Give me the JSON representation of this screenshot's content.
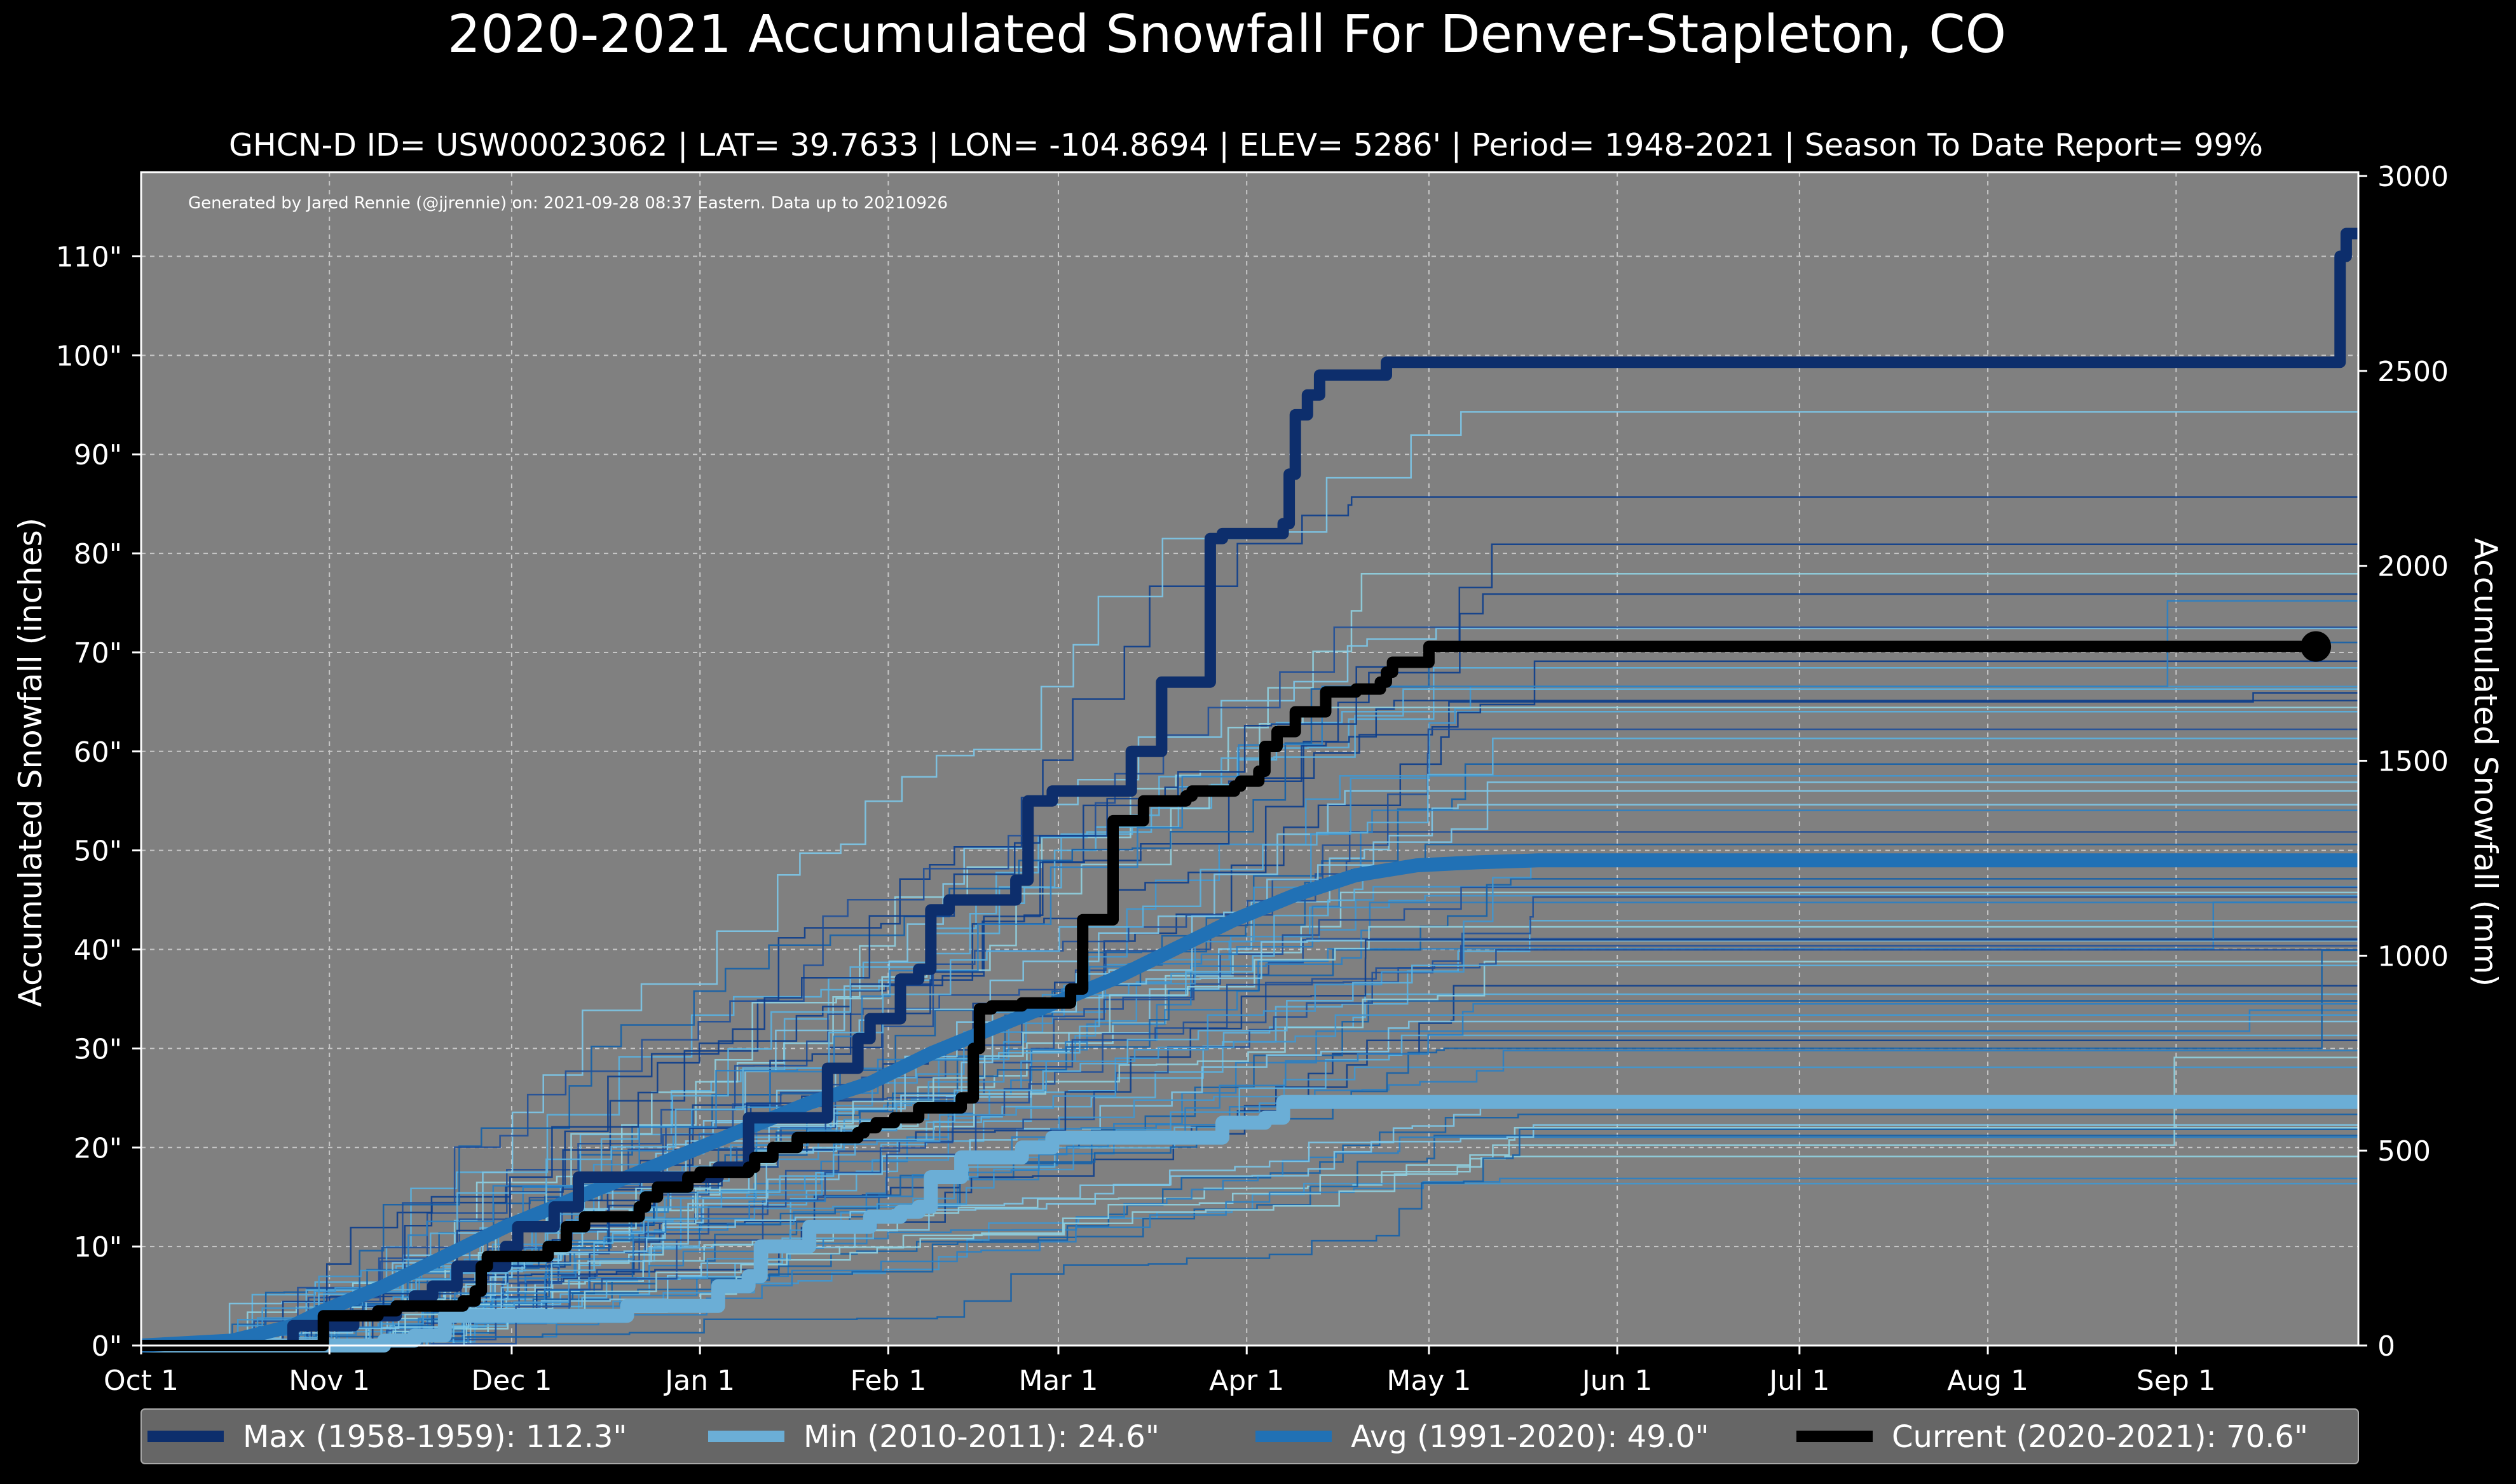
{
  "chart_data": {
    "type": "line",
    "title": "2020-2021 Accumulated Snowfall For Denver-Stapleton, CO",
    "subtitle": "GHCN-D ID= USW00023062 | LAT= 39.7633 | LON= -104.8694 | ELEV= 5286' | Period= 1948-2021 | Season To Date Report= 99%",
    "credit": "Generated by Jared Rennie (@jjrennie) on: 2021-09-28 08:37 Eastern. Data up to 20210926",
    "ylabel_left": "Accumulated Snowfall (inches)",
    "ylabel_right": "Accumulated Snowfall (mm)",
    "xlim": [
      0,
      365
    ],
    "ylim": [
      0,
      118.5
    ],
    "x_ticks": [
      {
        "day": 0,
        "label": "Oct 1"
      },
      {
        "day": 31,
        "label": "Nov 1"
      },
      {
        "day": 61,
        "label": "Dec 1"
      },
      {
        "day": 92,
        "label": "Jan 1"
      },
      {
        "day": 123,
        "label": "Feb 1"
      },
      {
        "day": 151,
        "label": "Mar 1"
      },
      {
        "day": 182,
        "label": "Apr 1"
      },
      {
        "day": 212,
        "label": "May 1"
      },
      {
        "day": 243,
        "label": "Jun 1"
      },
      {
        "day": 273,
        "label": "Jul 1"
      },
      {
        "day": 304,
        "label": "Aug 1"
      },
      {
        "day": 335,
        "label": "Sep 1"
      }
    ],
    "y_ticks_left": [
      {
        "value": 0,
        "label": "0\""
      },
      {
        "value": 10,
        "label": "10\""
      },
      {
        "value": 20,
        "label": "20\""
      },
      {
        "value": 30,
        "label": "30\""
      },
      {
        "value": 40,
        "label": "40\""
      },
      {
        "value": 50,
        "label": "50\""
      },
      {
        "value": 60,
        "label": "60\""
      },
      {
        "value": 70,
        "label": "70\""
      },
      {
        "value": 80,
        "label": "80\""
      },
      {
        "value": 90,
        "label": "90\""
      },
      {
        "value": 100,
        "label": "100\""
      },
      {
        "value": 110,
        "label": "110\""
      }
    ],
    "y_ticks_right": [
      {
        "mm": 0,
        "label": "0"
      },
      {
        "mm": 500,
        "label": "500"
      },
      {
        "mm": 1000,
        "label": "1000"
      },
      {
        "mm": 1500,
        "label": "1500"
      },
      {
        "mm": 2000,
        "label": "2000"
      },
      {
        "mm": 2500,
        "label": "2500"
      },
      {
        "mm": 3000,
        "label": "3000"
      }
    ],
    "series": [
      {
        "name": "Max (1958-1959)",
        "label": "Max (1958-1959):  112.3\"",
        "color": "#0d2e6c",
        "days": [
          0,
          20,
          25,
          35,
          42,
          45,
          48,
          52,
          60,
          62,
          68,
          72,
          75,
          82,
          90,
          95,
          100,
          110,
          113,
          118,
          120,
          125,
          128,
          130,
          133,
          140,
          144,
          146,
          148,
          150,
          152,
          160,
          163,
          165,
          168,
          172,
          176,
          178,
          182,
          186,
          188,
          189,
          190,
          192,
          194,
          198,
          200,
          202,
          205,
          210,
          220,
          300,
          361,
          362,
          363,
          365
        ],
        "values": [
          0,
          0,
          2,
          3,
          4,
          5,
          6,
          8,
          10,
          12,
          14,
          17,
          17,
          17,
          17,
          18,
          23,
          23,
          28,
          31,
          33,
          37,
          38,
          44,
          45,
          45,
          47,
          55,
          55,
          56,
          56,
          56,
          60,
          60,
          67,
          67,
          81.5,
          82,
          82,
          82,
          83,
          88,
          94,
          96,
          98,
          98,
          98,
          98,
          99.3,
          99.3,
          99.3,
          99.3,
          99.3,
          110,
          112.3,
          112.3
        ]
      },
      {
        "name": "Min (2010-2011)",
        "label": "Min (2010-2011):   24.6\"",
        "color": "#6baed6",
        "days": [
          0,
          25,
          35,
          40,
          45,
          50,
          60,
          70,
          80,
          90,
          95,
          100,
          102,
          110,
          115,
          120,
          125,
          128,
          130,
          132,
          135,
          140,
          145,
          148,
          150,
          155,
          170,
          178,
          185,
          188,
          200,
          365
        ],
        "values": [
          0,
          0,
          0,
          0.5,
          1,
          3,
          3,
          3,
          4,
          4,
          6,
          7,
          10,
          12,
          12,
          13,
          13.5,
          14,
          17,
          17,
          19,
          19,
          20,
          20,
          21,
          21,
          21,
          22.5,
          23,
          24.6,
          24.6,
          24.6
        ]
      },
      {
        "name": "Avg (1991-2020)",
        "label": "Avg (1991-2020):   49.0\"",
        "color": "#2171b5",
        "days": [
          0,
          15,
          25,
          30,
          40,
          50,
          60,
          70,
          80,
          90,
          100,
          110,
          120,
          125,
          130,
          140,
          150,
          160,
          170,
          180,
          190,
          200,
          210,
          220,
          230,
          240,
          250,
          300,
          340,
          365
        ],
        "values": [
          0,
          0.5,
          2,
          3.5,
          6,
          9,
          12,
          14.5,
          17,
          19.5,
          22,
          24.5,
          26.5,
          28,
          29.5,
          32,
          34.5,
          37,
          40,
          43,
          45.5,
          47.5,
          48.5,
          48.8,
          49,
          49,
          49,
          49,
          49,
          49
        ]
      },
      {
        "name": "Current (2020-2021)",
        "label": "Current (2020-2021):   70.6\"",
        "color": "#000000",
        "days": [
          0,
          20,
          24,
          25,
          30,
          36,
          39,
          42,
          47,
          53,
          55,
          56,
          57,
          63,
          67,
          70,
          71,
          73,
          78,
          82,
          83,
          85,
          89,
          90,
          92,
          98,
          100,
          101,
          104,
          108,
          112,
          115,
          120,
          117,
          118,
          119,
          121,
          124,
          128,
          133,
          134,
          135,
          137,
          138,
          140,
          145,
          148,
          152,
          153,
          155,
          160,
          164,
          165,
          172,
          173,
          180,
          181,
          184,
          185,
          187,
          190,
          195,
          200,
          204,
          205,
          206,
          212,
          230,
          270,
          300,
          358
        ],
        "values": [
          0,
          0,
          0,
          0,
          3,
          3,
          3.5,
          4,
          4,
          4.5,
          5.5,
          8,
          9,
          9,
          10,
          12,
          12,
          13,
          13,
          14,
          15,
          16,
          16,
          17,
          17.5,
          17.5,
          18,
          19,
          20,
          21,
          21,
          21,
          22,
          21,
          21.5,
          22,
          22.5,
          23,
          24,
          24,
          24,
          25,
          30,
          34,
          34.3,
          34.6,
          34.6,
          34.6,
          36,
          43,
          53,
          53,
          55,
          55.5,
          56,
          56.5,
          57,
          58,
          60.5,
          62,
          64,
          66,
          66.3,
          67,
          68,
          69,
          70.6,
          70.6,
          70.6,
          70.6,
          70.6
        ]
      }
    ],
    "legend_position": "bottom",
    "grid": true
  },
  "colors": {
    "background": "#000000",
    "plot_background": "#808080",
    "grid": "#c7c7c7",
    "legend_background": "#666666"
  }
}
